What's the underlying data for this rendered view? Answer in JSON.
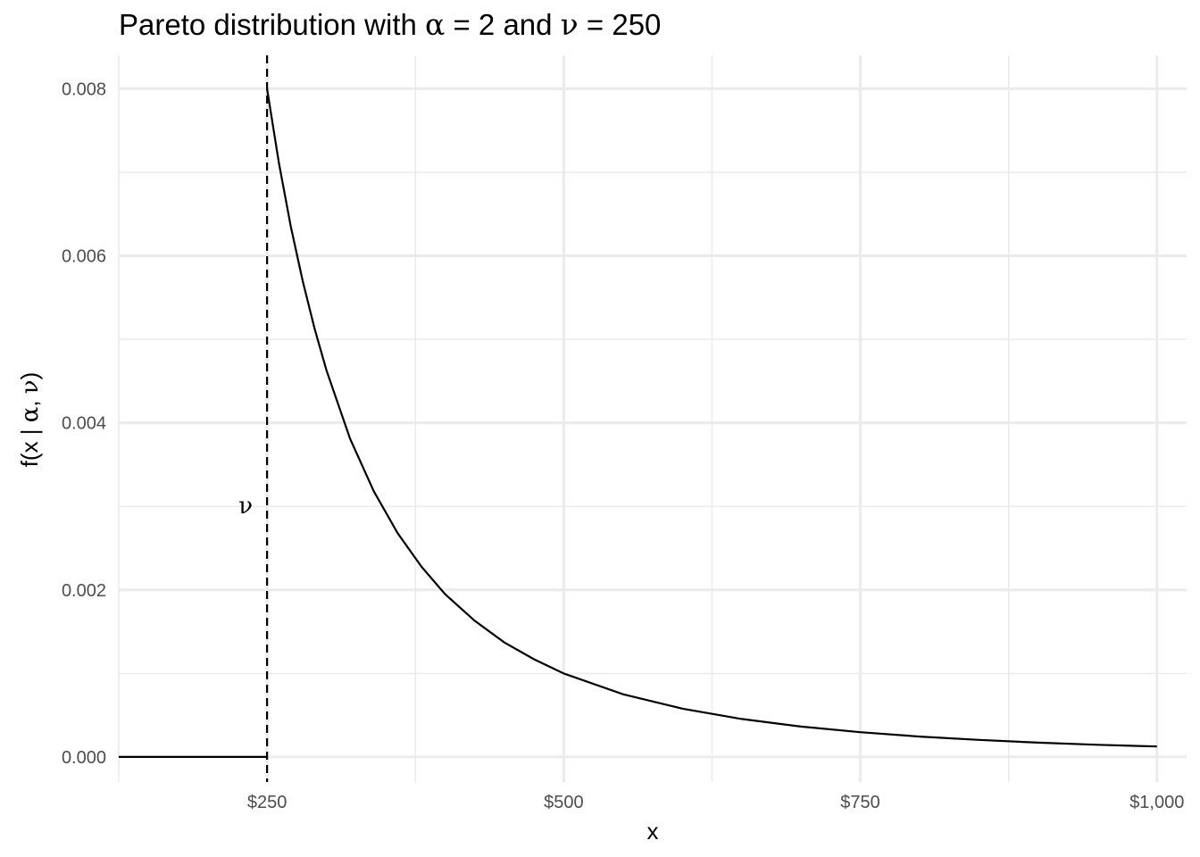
{
  "chart_data": {
    "type": "line",
    "title_parts": [
      "Pareto distribution with ",
      "α",
      " = 2 and ",
      "ν",
      " = 250"
    ],
    "xlabel": "x",
    "ylabel_parts": [
      "f(x | ",
      "α",
      ", ",
      "ν",
      ")"
    ],
    "xlim": [
      125,
      1025
    ],
    "ylim": [
      -0.0003,
      0.0084
    ],
    "x_ticks": [
      250,
      500,
      750,
      1000
    ],
    "x_tick_labels": [
      "$250",
      "$500",
      "$750",
      "$1,000"
    ],
    "x_minor_ticks": [
      125,
      375,
      625,
      875
    ],
    "y_ticks": [
      0,
      0.002,
      0.004,
      0.006,
      0.008
    ],
    "y_tick_labels": [
      "0.000",
      "0.002",
      "0.004",
      "0.006",
      "0.008"
    ],
    "y_minor_ticks": [
      0.001,
      0.003,
      0.005,
      0.007
    ],
    "grid": true,
    "series": [
      {
        "color": "#000000",
        "points": [
          [
            125,
            0
          ],
          [
            250,
            0
          ],
          [
            250,
            0.008
          ],
          [
            260,
            0.00711
          ],
          [
            270,
            0.00635
          ],
          [
            280,
            0.0057
          ],
          [
            290,
            0.00513
          ],
          [
            300,
            0.00463
          ],
          [
            320,
            0.00381
          ],
          [
            340,
            0.00318
          ],
          [
            360,
            0.00268
          ],
          [
            380,
            0.00228
          ],
          [
            400,
            0.00195
          ],
          [
            425,
            0.00163
          ],
          [
            450,
            0.00137
          ],
          [
            475,
            0.00117
          ],
          [
            500,
            0.001
          ],
          [
            550,
            0.000751
          ],
          [
            600,
            0.000579
          ],
          [
            650,
            0.000455
          ],
          [
            700,
            0.000364
          ],
          [
            750,
            0.000296
          ],
          [
            800,
            0.000244
          ],
          [
            850,
            0.000204
          ],
          [
            900,
            0.000171
          ],
          [
            950,
            0.000146
          ],
          [
            1000,
            0.000125
          ]
        ]
      }
    ],
    "annotations": [
      {
        "type": "vline",
        "x": 250,
        "style": "dashed",
        "color": "#000000"
      },
      {
        "type": "text",
        "text": "ν",
        "x": 232,
        "y": 0.003
      }
    ]
  }
}
